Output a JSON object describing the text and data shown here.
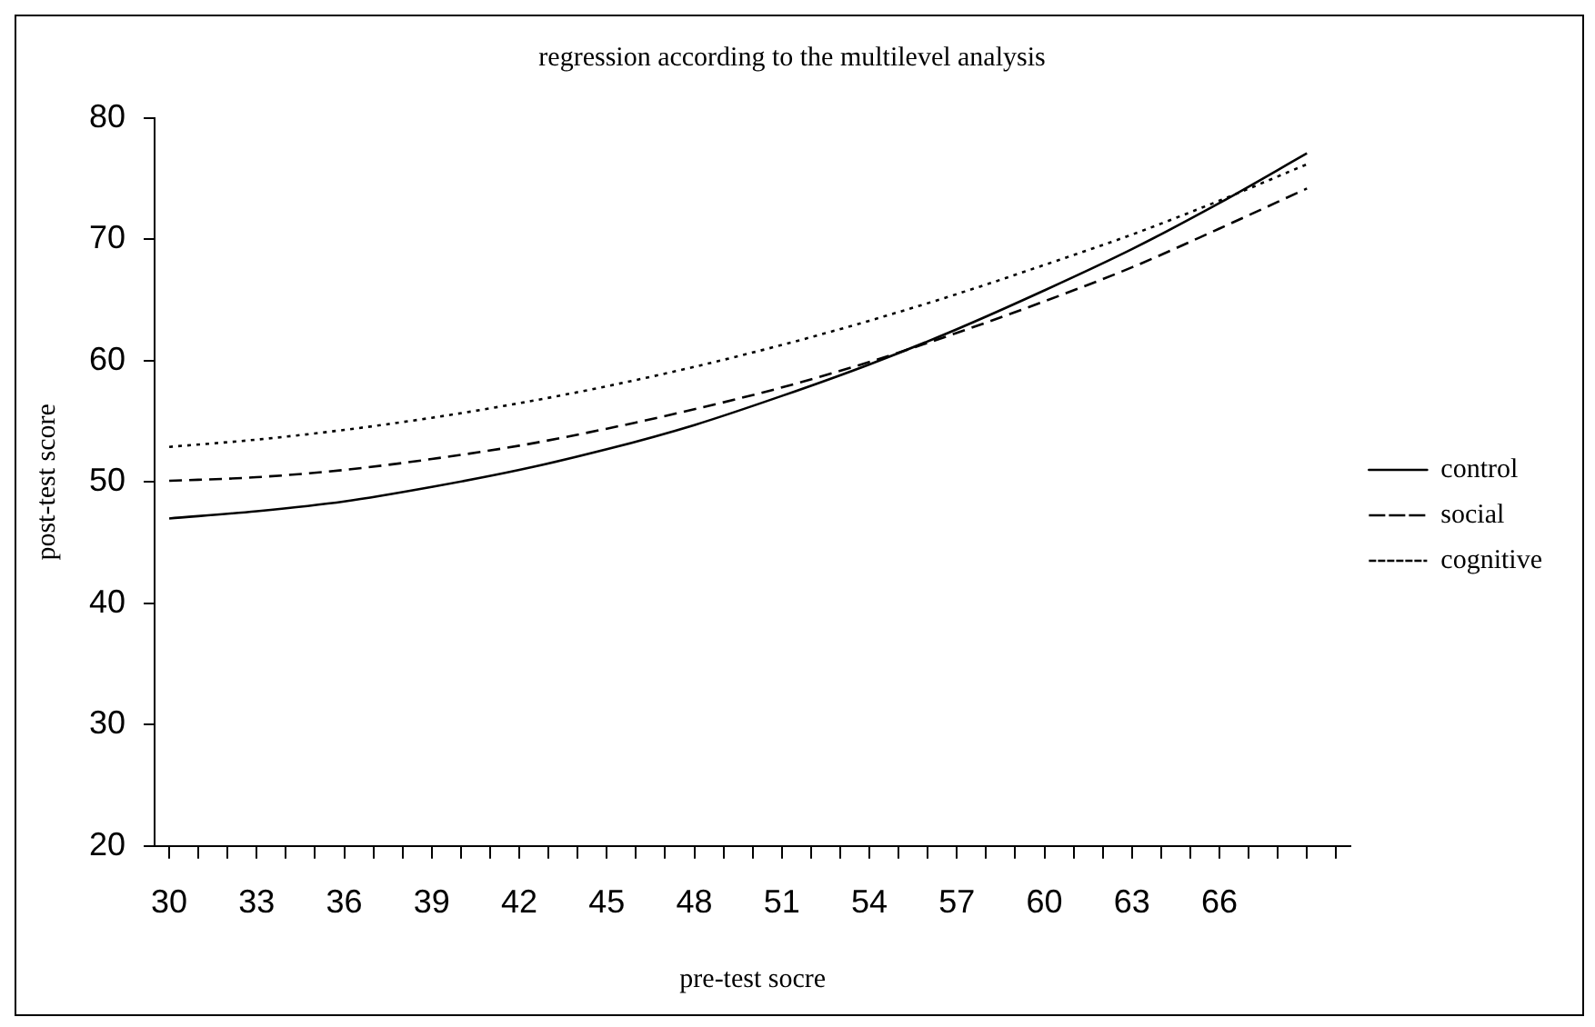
{
  "chart_data": {
    "type": "line",
    "title": "regression according to the multilevel analysis",
    "xlabel": "pre-test socre",
    "ylabel": "post-test score",
    "x": [
      30,
      33,
      36,
      39,
      42,
      45,
      48,
      51,
      54,
      57,
      60,
      63,
      66,
      69
    ],
    "series": [
      {
        "name": "control",
        "color": "#000000",
        "line_style": "solid",
        "values": [
          47.0,
          47.6,
          48.4,
          49.6,
          51.0,
          52.7,
          54.7,
          57.1,
          59.7,
          62.6,
          65.8,
          69.2,
          73.0,
          77.1
        ]
      },
      {
        "name": "social",
        "color": "#000000",
        "line_style": "dashed",
        "values": [
          50.1,
          50.4,
          51.0,
          51.9,
          53.0,
          54.4,
          56.0,
          57.8,
          59.9,
          62.3,
          64.9,
          67.7,
          70.9,
          74.2
        ]
      },
      {
        "name": "cognitive",
        "color": "#000000",
        "line_style": "dotted",
        "values": [
          52.9,
          53.5,
          54.3,
          55.3,
          56.5,
          57.9,
          59.5,
          61.3,
          63.3,
          65.5,
          67.9,
          70.4,
          73.2,
          76.2
        ]
      }
    ],
    "xlim": [
      29.5,
      70.5
    ],
    "xticks": [
      30,
      {
        "value": 31,
        "label": null
      },
      {
        "value": 32,
        "label": null
      },
      33,
      {
        "value": 34,
        "label": null
      },
      {
        "value": 35,
        "label": null
      },
      36,
      {
        "value": 37,
        "label": null
      },
      {
        "value": 38,
        "label": null
      },
      39,
      {
        "value": 40,
        "label": null
      },
      {
        "value": 41,
        "label": null
      },
      42,
      {
        "value": 43,
        "label": null
      },
      {
        "value": 44,
        "label": null
      },
      45,
      {
        "value": 46,
        "label": null
      },
      {
        "value": 47,
        "label": null
      },
      48,
      {
        "value": 49,
        "label": null
      },
      {
        "value": 50,
        "label": null
      },
      51,
      {
        "value": 52,
        "label": null
      },
      {
        "value": 53,
        "label": null
      },
      54,
      {
        "value": 55,
        "label": null
      },
      {
        "value": 56,
        "label": null
      },
      57,
      {
        "value": 58,
        "label": null
      },
      {
        "value": 59,
        "label": null
      },
      60,
      {
        "value": 61,
        "label": null
      },
      {
        "value": 62,
        "label": null
      },
      63,
      {
        "value": 64,
        "label": null
      },
      {
        "value": 65,
        "label": null
      },
      66,
      {
        "value": 67,
        "label": null
      },
      {
        "value": 68,
        "label": null
      },
      {
        "value": 69,
        "label": null
      },
      {
        "value": 70,
        "label": null
      }
    ],
    "ylim": [
      20,
      80
    ],
    "yticks": [
      20,
      30,
      40,
      50,
      60,
      70,
      80
    ],
    "grid": false,
    "legend": "right",
    "marker": "none"
  }
}
